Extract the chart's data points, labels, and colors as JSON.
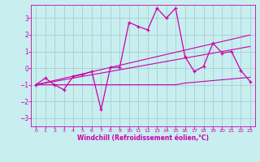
{
  "xlabel": "Windchill (Refroidissement éolien,°C)",
  "bg_color": "#c8eef0",
  "line_color": "#cc00aa",
  "grid_color": "#a0c8cc",
  "xlim": [
    -0.5,
    23.5
  ],
  "ylim": [
    -3.5,
    3.8
  ],
  "yticks": [
    -3,
    -2,
    -1,
    0,
    1,
    2,
    3
  ],
  "xticks": [
    0,
    1,
    2,
    3,
    4,
    5,
    6,
    7,
    8,
    9,
    10,
    11,
    12,
    13,
    14,
    15,
    16,
    17,
    18,
    19,
    20,
    21,
    22,
    23
  ],
  "hours": [
    0,
    1,
    2,
    3,
    4,
    5,
    6,
    7,
    8,
    9,
    10,
    11,
    12,
    13,
    14,
    15,
    16,
    17,
    18,
    19,
    20,
    21,
    22,
    23
  ],
  "temp_line": [
    -1.0,
    -0.6,
    -1.0,
    -1.3,
    -0.5,
    -0.4,
    -0.2,
    -2.5,
    0.05,
    0.05,
    2.75,
    2.5,
    2.3,
    3.6,
    3.0,
    3.6,
    0.7,
    -0.2,
    0.1,
    1.5,
    0.9,
    1.0,
    -0.15,
    -0.8
  ],
  "trend_line1": [
    -1.0,
    -0.87,
    -0.74,
    -0.61,
    -0.48,
    -0.35,
    -0.22,
    -0.09,
    0.04,
    0.17,
    0.3,
    0.43,
    0.56,
    0.69,
    0.82,
    0.95,
    1.08,
    1.21,
    1.34,
    1.47,
    1.6,
    1.73,
    1.86,
    1.99
  ],
  "trend_line2": [
    -1.0,
    -0.9,
    -0.8,
    -0.7,
    -0.6,
    -0.5,
    -0.4,
    -0.3,
    -0.2,
    -0.1,
    0.0,
    0.1,
    0.2,
    0.3,
    0.4,
    0.5,
    0.6,
    0.7,
    0.8,
    0.9,
    1.0,
    1.1,
    1.2,
    1.3
  ],
  "flat_line": [
    -1.0,
    -1.0,
    -1.0,
    -1.0,
    -1.0,
    -1.0,
    -1.0,
    -1.0,
    -1.0,
    -1.0,
    -1.0,
    -1.0,
    -1.0,
    -1.0,
    -1.0,
    -1.0,
    -0.9,
    -0.85,
    -0.8,
    -0.75,
    -0.7,
    -0.65,
    -0.6,
    -0.55
  ]
}
